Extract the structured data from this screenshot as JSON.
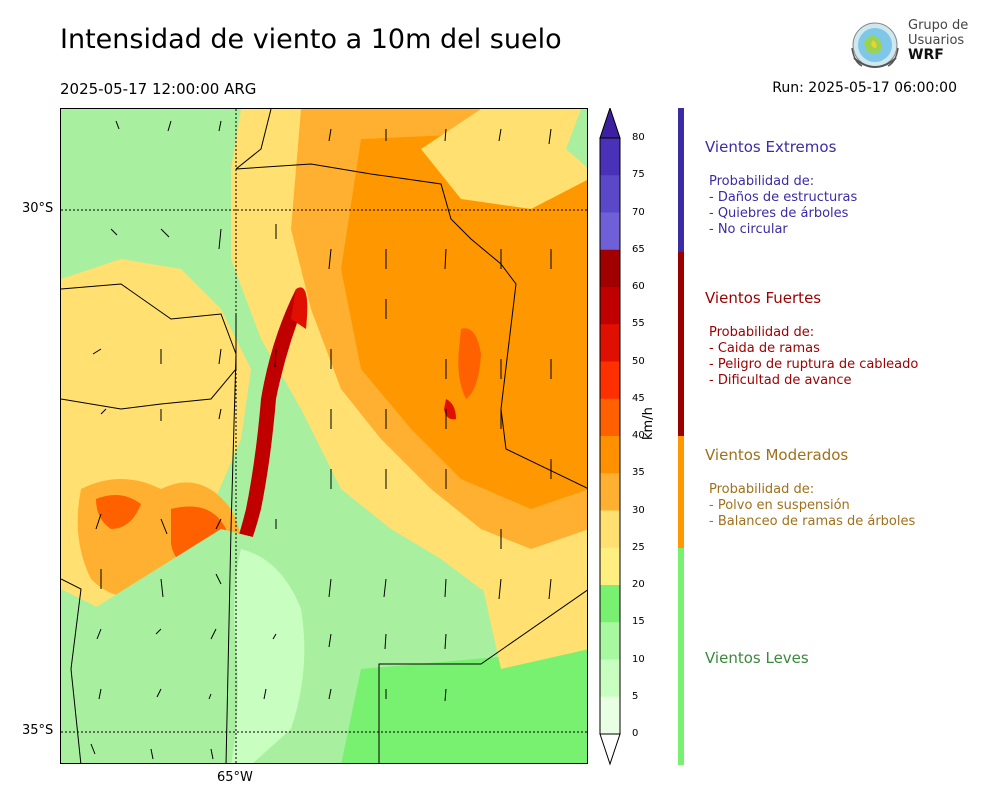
{
  "title": "Intensidad de viento a 10m del suelo",
  "valid_time": "2025-05-17 12:00:00 ARG",
  "run": "Run: 2025-05-17 06:00:00",
  "logo": {
    "line1": "Grupo de",
    "line2": "Usuarios",
    "line3": "WRF"
  },
  "map": {
    "lat_labels": [
      "30°S",
      "35°S"
    ],
    "lon_labels": [
      "65°W"
    ]
  },
  "colorbar": {
    "unit": "km/h",
    "ticks": [
      "80",
      "75",
      "70",
      "65",
      "60",
      "55",
      "50",
      "45",
      "40",
      "35",
      "30",
      "25",
      "20",
      "15",
      "10",
      "5",
      "0"
    ],
    "colors": [
      "#3d20a0",
      "#4a32b8",
      "#5a48c8",
      "#7060d8",
      "#a00000",
      "#c00000",
      "#e01000",
      "#ff3000",
      "#ff6000",
      "#ff9000",
      "#ffb030",
      "#ffe070",
      "#ffee80",
      "#78f070",
      "#a8f8a0",
      "#c8ffc0",
      "#e8ffe4",
      "#ffffff"
    ]
  },
  "categories": [
    {
      "title": "Vientos Extremos",
      "heading": "Probabilidad de:",
      "items": [
        "- Daños de estructuras",
        "- Quiebres de árboles",
        "- No circular"
      ],
      "color": "#3b2ca6"
    },
    {
      "title": "Vientos Fuertes",
      "heading": "Probabilidad de:",
      "items": [
        "- Caida de ramas",
        "- Peligro de ruptura de cableado",
        "- Dificultad de avance"
      ],
      "color": "#9b0000"
    },
    {
      "title": "Vientos Moderados",
      "heading": "Probabilidad de:",
      "items": [
        "- Polvo en suspensión",
        "- Balanceo de ramas de árboles"
      ],
      "color": "#a0701a"
    },
    {
      "title": "Vientos Leves",
      "heading": "",
      "items": [],
      "color": "#3a8a3a"
    }
  ]
}
